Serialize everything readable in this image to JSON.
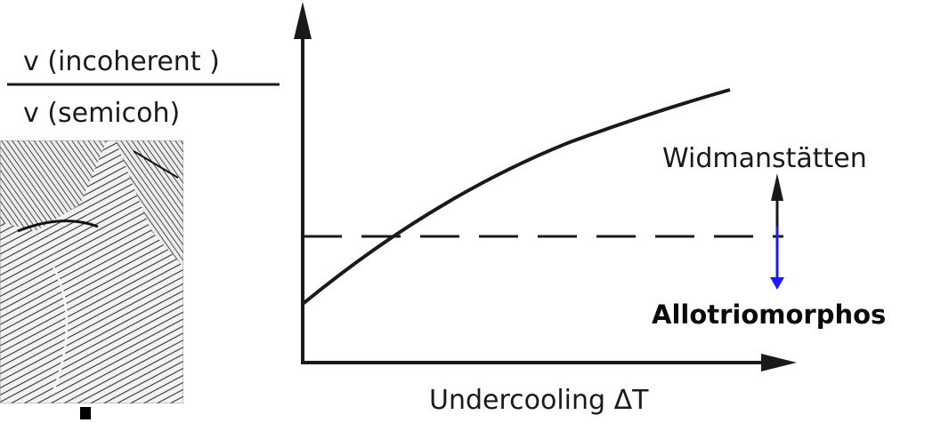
{
  "ratio_numerator": "v (incoherent )",
  "ratio_denominator": "v (semicoh)",
  "upper_region_label": "Widmanstätten",
  "lower_region_label": "Allotriomorphos",
  "x_axis_label": "Undercooling ΔT",
  "micrograph_icon": "micrograph-image",
  "colors": {
    "ink": "#1a1a1a",
    "arrow_blue": "#1a1aff",
    "label_dark": "#0a0a0a"
  }
}
